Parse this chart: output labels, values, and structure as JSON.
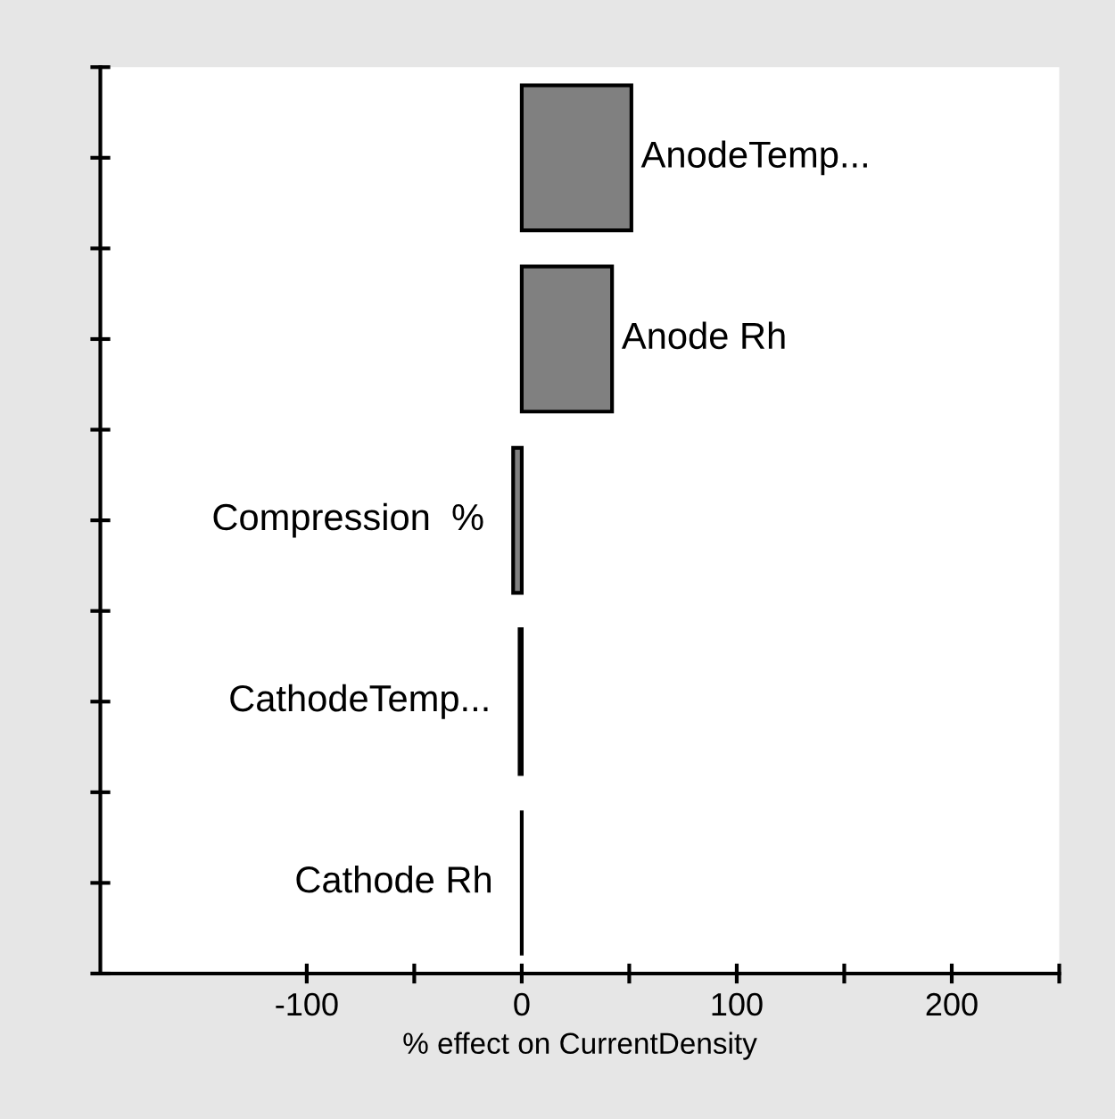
{
  "chart_data": {
    "type": "bar",
    "orientation": "horizontal",
    "categories": [
      "AnodeTemp...",
      "Anode Rh",
      "Compression  %",
      "CathodeTemp...",
      "Cathode Rh"
    ],
    "values": [
      51,
      42,
      -4,
      -1,
      0
    ],
    "colors": [
      "#808080",
      "#808080",
      "#808080",
      "#000000",
      "#000000"
    ],
    "xlabel": "% effect on CurrentDensity",
    "xlim": [
      -196,
      250
    ],
    "xticks": [
      -100,
      {
        "value": -50,
        "label": null
      },
      0,
      {
        "value": 50,
        "label": null
      },
      100,
      {
        "value": 150,
        "label": null
      },
      200,
      {
        "value": 250,
        "label": null
      }
    ],
    "tick_labels": "x",
    "grid": false,
    "legend": false
  }
}
